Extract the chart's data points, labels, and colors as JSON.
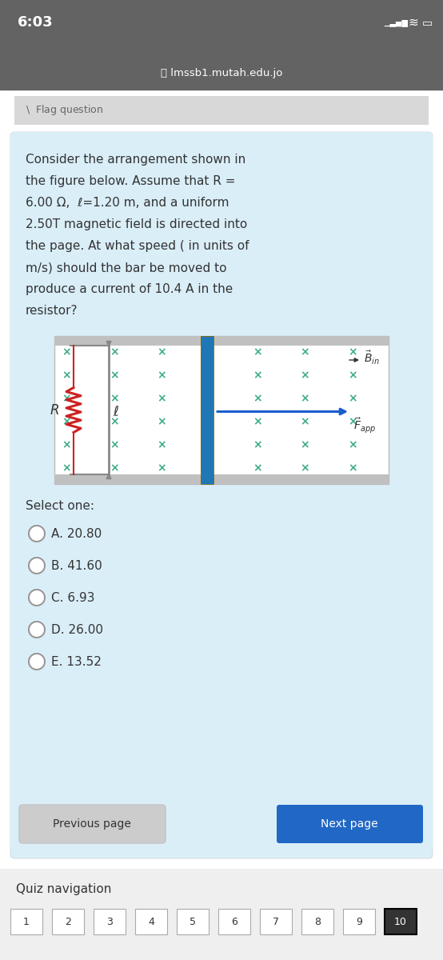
{
  "status_bar_time": "6:03",
  "status_bar_bg": "#636363",
  "url": "lmssb1.mutah.edu.jo",
  "flag_text": "Flag question",
  "question_text_lines": [
    "Consider the arrangement shown in",
    "the figure below. Assume that R =",
    "6.00 Ω,  ℓ=1.20 m, and a uniform",
    "2.50T magnetic field is directed into",
    "the page. At what speed ( in units of",
    "m/s) should the bar be moved to",
    "produce a current of 10.4 A in the",
    "resistor?"
  ],
  "options": [
    "A. 20.80",
    "B. 41.60",
    "C. 6.93",
    "D. 26.00",
    "E. 13.52"
  ],
  "select_one_text": "Select one:",
  "prev_button_text": "Previous page",
  "next_button_text": "Next page",
  "quiz_nav_text": "Quiz navigation",
  "nav_numbers": [
    "1",
    "2",
    "3",
    "4",
    "5",
    "6",
    "7",
    "8",
    "9",
    "10"
  ],
  "bg_white": "#ffffff",
  "bg_outer": "#f0f0f0",
  "bg_light_blue": "#daeef8",
  "bg_gray_flag": "#d8d8d8",
  "bg_nav_section": "#eeeeee",
  "text_dark": "#333333",
  "text_medium": "#666666",
  "button_prev_bg": "#cccccc",
  "button_next_bg": "#2167c5",
  "button_text_prev": "#333333",
  "button_text_next": "#ffffff",
  "nav_highlight_bg": "#000000",
  "nav_box_bg": "#ffffff",
  "nav_box_border": "#aaaaaa",
  "x_color": "#3aaa88",
  "bar_color_top": "#d4920a",
  "bar_color_bot": "#b07020",
  "resistor_color": "#cc2222",
  "rail_color": "#888888",
  "arrow_color": "#1a5fcc"
}
